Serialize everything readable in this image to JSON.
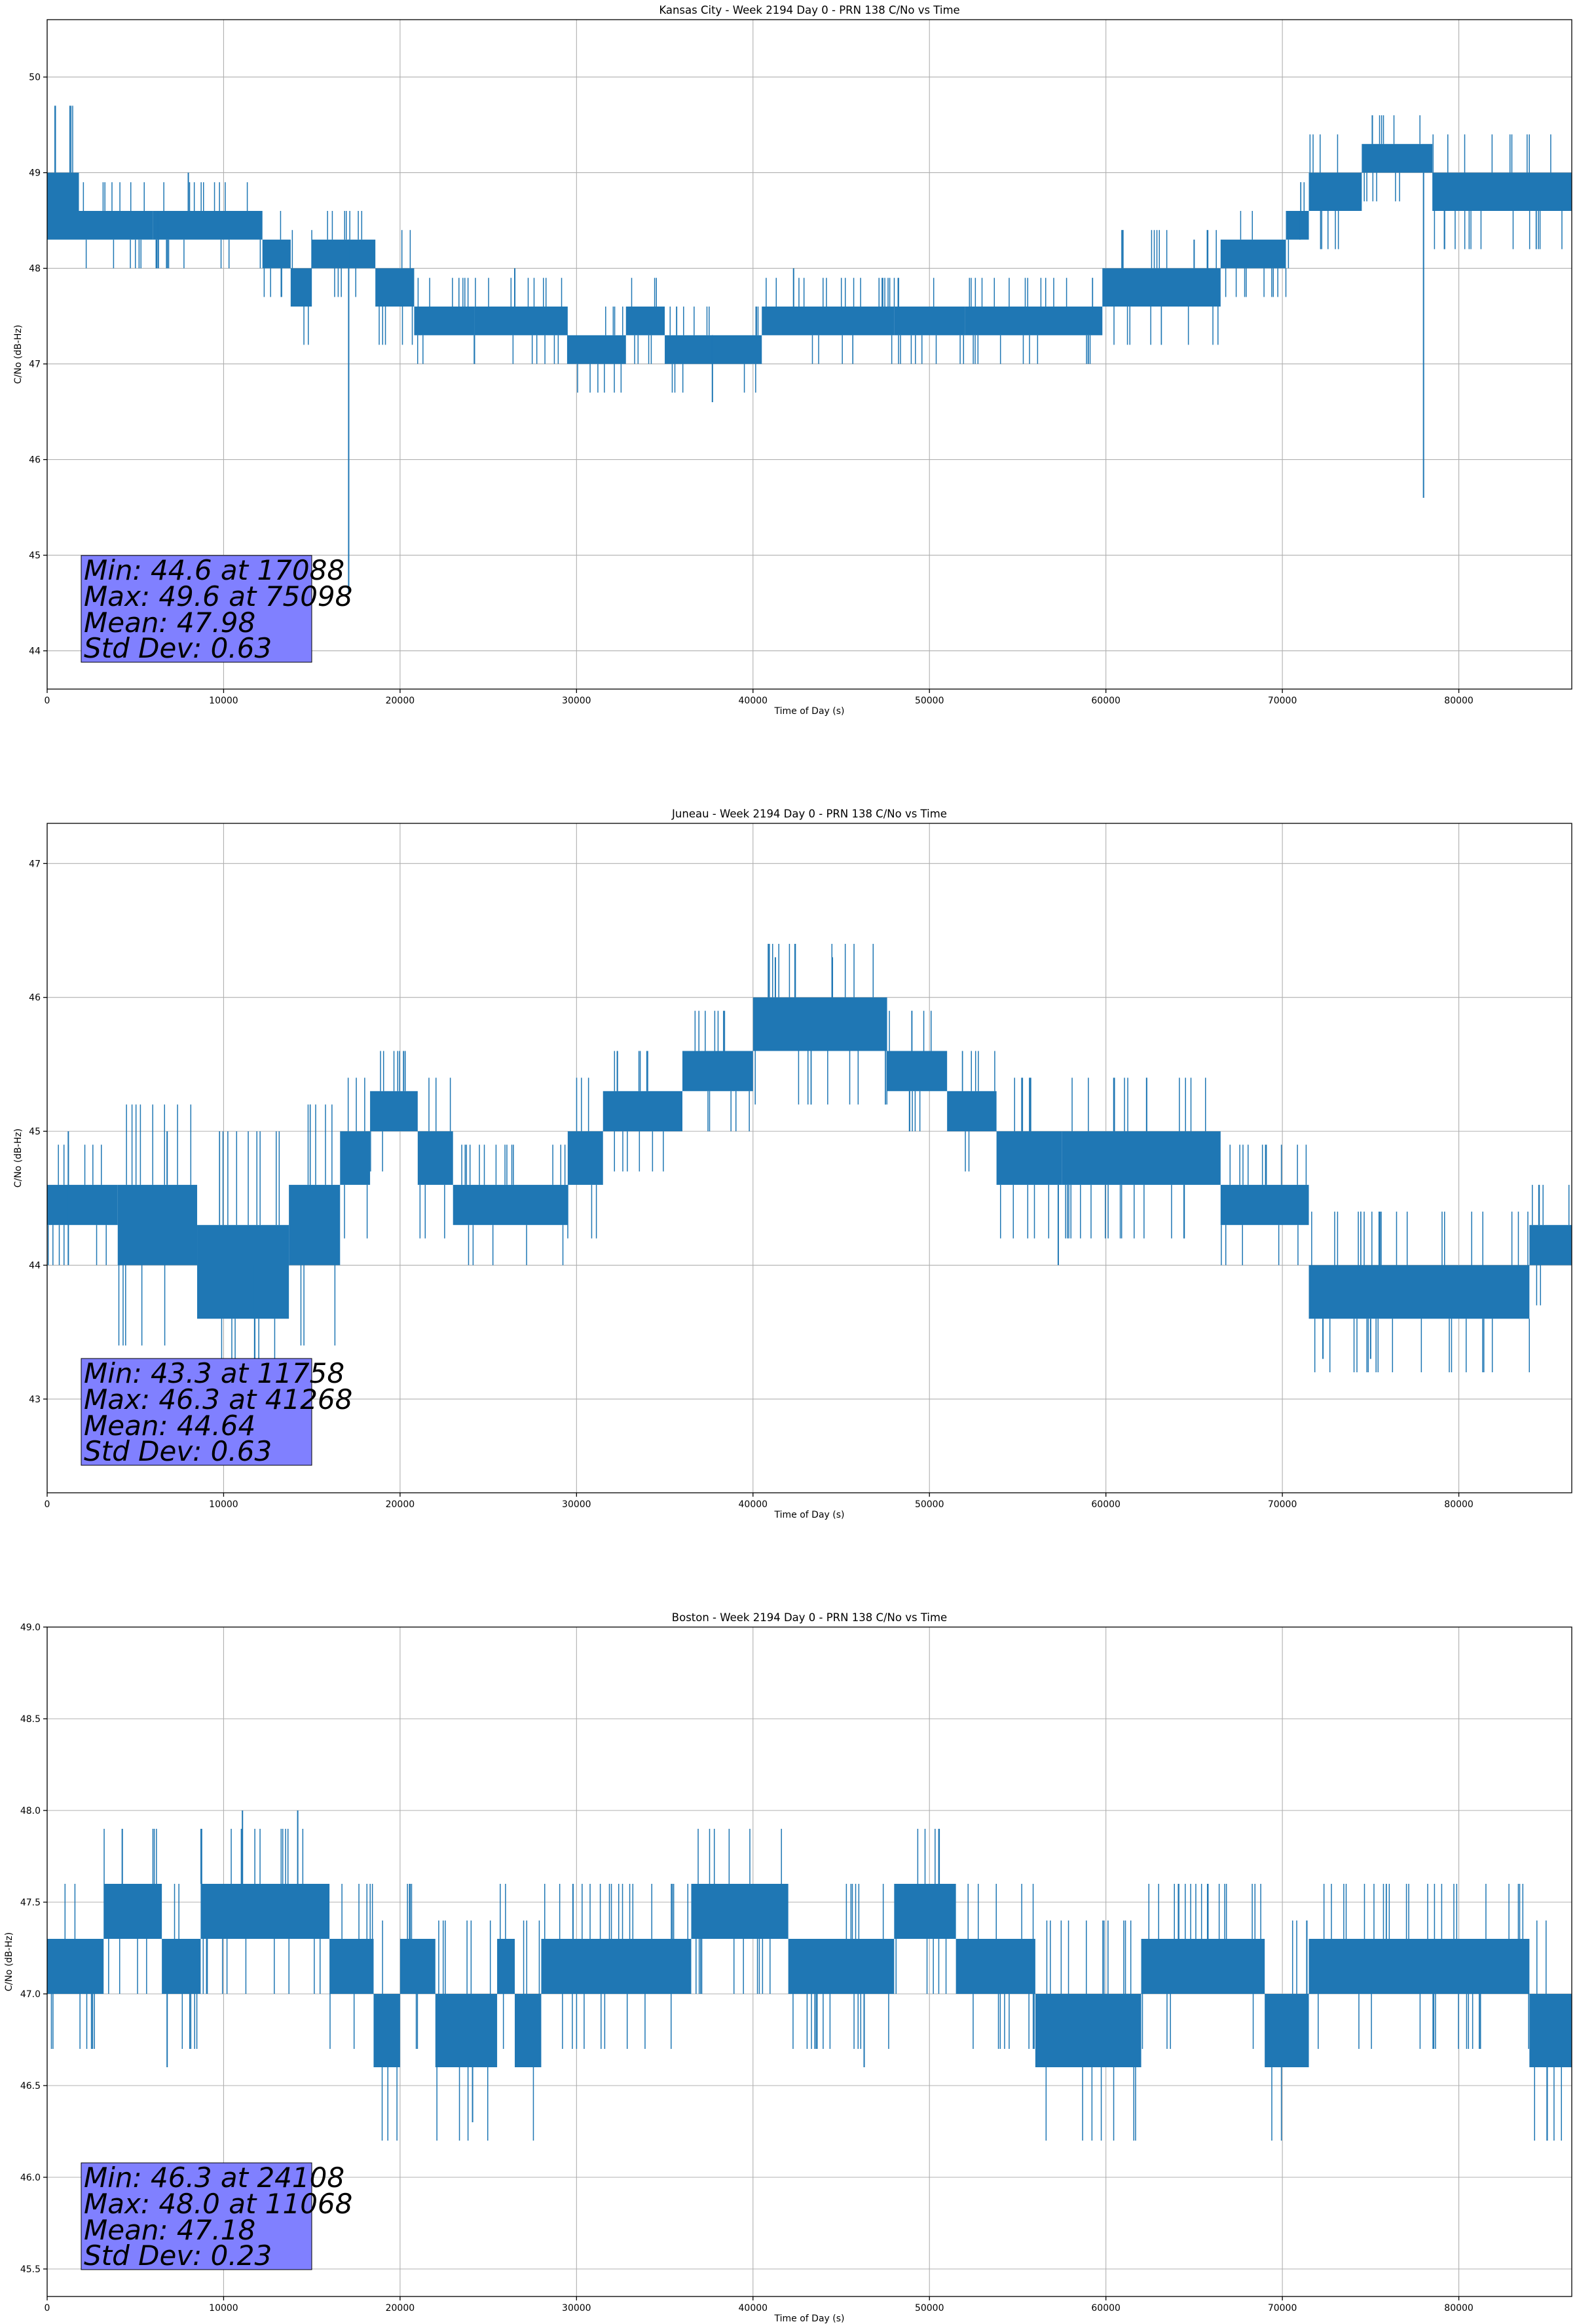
{
  "colors": {
    "series": "#1f77b4",
    "stats_box": "#8080ff",
    "grid": "#b0b0b0"
  },
  "chart_data": [
    {
      "type": "line",
      "title": "Kansas City - Week 2194 Day 0 - PRN 138 C/No vs Time",
      "xlabel": "Time of Day (s)",
      "ylabel": "C/No (dB-Hz)",
      "xlim": [
        0,
        86400
      ],
      "ylim": [
        43.6,
        50.6
      ],
      "xticks": [
        0,
        10000,
        20000,
        30000,
        40000,
        50000,
        60000,
        70000,
        80000
      ],
      "xtick_labels": [
        "0",
        "10000",
        "20000",
        "30000",
        "40000",
        "50000",
        "60000",
        "70000",
        "80000"
      ],
      "yticks": [
        44,
        45,
        46,
        47,
        48,
        49,
        50
      ],
      "ytick_labels": [
        "44",
        "45",
        "46",
        "47",
        "48",
        "49",
        "50"
      ],
      "grid": true,
      "stats_lines": [
        "Min: 44.6 at 17088",
        "Max: 49.6 at 75098",
        "Mean: 47.98",
        "Std Dev: 0.63"
      ],
      "series": [
        {
          "bands": [
            {
              "x": [
                0,
                1800
              ],
              "y": [
                48.3,
                49.0
              ]
            },
            {
              "x": [
                1800,
                6000
              ],
              "y": [
                48.3,
                48.6
              ]
            },
            {
              "x": [
                6000,
                12200
              ],
              "y": [
                48.3,
                48.6
              ]
            },
            {
              "x": [
                12200,
                13800
              ],
              "y": [
                48.0,
                48.3
              ]
            },
            {
              "x": [
                13800,
                15000
              ],
              "y": [
                47.6,
                48.0
              ]
            },
            {
              "x": [
                15000,
                18600
              ],
              "y": [
                48.0,
                48.3
              ]
            },
            {
              "x": [
                18600,
                20800
              ],
              "y": [
                47.6,
                48.0
              ]
            },
            {
              "x": [
                20800,
                24200
              ],
              "y": [
                47.3,
                47.6
              ]
            },
            {
              "x": [
                24200,
                29500
              ],
              "y": [
                47.3,
                47.6
              ]
            },
            {
              "x": [
                29500,
                32800
              ],
              "y": [
                47.0,
                47.3
              ]
            },
            {
              "x": [
                32800,
                35000
              ],
              "y": [
                47.3,
                47.6
              ]
            },
            {
              "x": [
                35000,
                40500
              ],
              "y": [
                47.0,
                47.3
              ]
            },
            {
              "x": [
                40500,
                48000
              ],
              "y": [
                47.3,
                47.6
              ]
            },
            {
              "x": [
                48000,
                52000
              ],
              "y": [
                47.3,
                47.6
              ]
            },
            {
              "x": [
                52000,
                59800
              ],
              "y": [
                47.3,
                47.6
              ]
            },
            {
              "x": [
                59800,
                66500
              ],
              "y": [
                47.6,
                48.0
              ]
            },
            {
              "x": [
                66500,
                70200
              ],
              "y": [
                48.0,
                48.3
              ]
            },
            {
              "x": [
                70200,
                71500
              ],
              "y": [
                48.3,
                48.6
              ]
            },
            {
              "x": [
                71500,
                74500
              ],
              "y": [
                48.6,
                49.0
              ]
            },
            {
              "x": [
                74500,
                78500
              ],
              "y": [
                49.0,
                49.3
              ]
            },
            {
              "x": [
                78500,
                86400
              ],
              "y": [
                48.6,
                49.0
              ]
            }
          ],
          "spikes": [
            {
              "x": 6300,
              "y": [
                48.0,
                48.6
              ]
            },
            {
              "x": 8000,
              "y": [
                48.6,
                49.0
              ]
            },
            {
              "x": 17088,
              "y": [
                44.6,
                48.3
              ]
            },
            {
              "x": 26500,
              "y": [
                47.6,
                48.0
              ]
            },
            {
              "x": 37700,
              "y": [
                46.6,
                47.3
              ]
            },
            {
              "x": 42300,
              "y": [
                47.6,
                48.0
              ]
            },
            {
              "x": 59000,
              "y": [
                47.0,
                47.3
              ]
            },
            {
              "x": 65000,
              "y": [
                48.0,
                48.3
              ]
            },
            {
              "x": 71000,
              "y": [
                48.3,
                48.6
              ]
            },
            {
              "x": 75098,
              "y": [
                49.3,
                49.6
              ]
            },
            {
              "x": 78000,
              "y": [
                45.6,
                49.0
              ]
            }
          ]
        }
      ]
    },
    {
      "type": "line",
      "title": "Juneau - Week 2194 Day 0 - PRN 138 C/No vs Time",
      "xlabel": "Time of Day (s)",
      "ylabel": "C/No (dB-Hz)",
      "xlim": [
        0,
        86400
      ],
      "ylim": [
        42.3,
        47.3
      ],
      "xticks": [
        0,
        10000,
        20000,
        30000,
        40000,
        50000,
        60000,
        70000,
        80000
      ],
      "xtick_labels": [
        "0",
        "10000",
        "20000",
        "30000",
        "40000",
        "50000",
        "60000",
        "70000",
        "80000"
      ],
      "yticks": [
        43,
        44,
        45,
        46,
        47
      ],
      "ytick_labels": [
        "43",
        "44",
        "45",
        "46",
        "47"
      ],
      "grid": true,
      "stats_lines": [
        "Min: 43.3 at 11758",
        "Max: 46.3 at 41268",
        "Mean: 44.64",
        "Std Dev: 0.63"
      ],
      "series": [
        {
          "bands": [
            {
              "x": [
                0,
                4000
              ],
              "y": [
                44.3,
                44.6
              ]
            },
            {
              "x": [
                4000,
                8500
              ],
              "y": [
                44.0,
                44.6
              ]
            },
            {
              "x": [
                8500,
                13700
              ],
              "y": [
                43.6,
                44.3
              ]
            },
            {
              "x": [
                13700,
                16600
              ],
              "y": [
                44.0,
                44.6
              ]
            },
            {
              "x": [
                16600,
                18300
              ],
              "y": [
                44.6,
                45.0
              ]
            },
            {
              "x": [
                18300,
                21000
              ],
              "y": [
                45.0,
                45.3
              ]
            },
            {
              "x": [
                21000,
                23000
              ],
              "y": [
                44.6,
                45.0
              ]
            },
            {
              "x": [
                23000,
                29500
              ],
              "y": [
                44.3,
                44.6
              ]
            },
            {
              "x": [
                29500,
                31500
              ],
              "y": [
                44.6,
                45.0
              ]
            },
            {
              "x": [
                31500,
                36000
              ],
              "y": [
                45.0,
                45.3
              ]
            },
            {
              "x": [
                36000,
                40000
              ],
              "y": [
                45.3,
                45.6
              ]
            },
            {
              "x": [
                40000,
                47600
              ],
              "y": [
                45.6,
                46.0
              ]
            },
            {
              "x": [
                47600,
                51000
              ],
              "y": [
                45.3,
                45.6
              ]
            },
            {
              "x": [
                51000,
                53800
              ],
              "y": [
                45.0,
                45.3
              ]
            },
            {
              "x": [
                53800,
                57500
              ],
              "y": [
                44.6,
                45.0
              ]
            },
            {
              "x": [
                57500,
                66500
              ],
              "y": [
                44.6,
                45.0
              ]
            },
            {
              "x": [
                66500,
                71500
              ],
              "y": [
                44.3,
                44.6
              ]
            },
            {
              "x": [
                71500,
                84000
              ],
              "y": [
                43.6,
                44.0
              ]
            },
            {
              "x": [
                84000,
                86400
              ],
              "y": [
                44.0,
                44.3
              ]
            }
          ],
          "spikes": [
            {
              "x": 1200,
              "y": [
                45.0,
                44.0
              ]
            },
            {
              "x": 6800,
              "y": [
                44.6,
                45.0
              ]
            },
            {
              "x": 11758,
              "y": [
                43.3,
                44.0
              ]
            },
            {
              "x": 20200,
              "y": [
                45.3,
                45.6
              ]
            },
            {
              "x": 41268,
              "y": [
                46.0,
                46.3
              ]
            },
            {
              "x": 44500,
              "y": [
                46.0,
                46.3
              ]
            },
            {
              "x": 57300,
              "y": [
                44.0,
                44.6
              ]
            },
            {
              "x": 72300,
              "y": [
                43.3,
                43.6
              ]
            },
            {
              "x": 75000,
              "y": [
                43.3,
                43.6
              ]
            }
          ]
        }
      ]
    },
    {
      "type": "line",
      "title": "Boston - Week 2194 Day 0 - PRN 138 C/No vs Time",
      "xlabel": "Time of Day (s)",
      "ylabel": "C/No (dB-Hz)",
      "xlim": [
        0,
        86400
      ],
      "ylim": [
        45.35,
        49.0
      ],
      "xticks": [
        0,
        10000,
        20000,
        30000,
        40000,
        50000,
        60000,
        70000,
        80000
      ],
      "xtick_labels": [
        "0",
        "10000",
        "20000",
        "30000",
        "40000",
        "50000",
        "60000",
        "70000",
        "80000"
      ],
      "yticks": [
        45.5,
        46.0,
        46.5,
        47.0,
        47.5,
        48.0,
        48.5,
        49.0
      ],
      "ytick_labels": [
        "45.5",
        "46.0",
        "46.5",
        "47.0",
        "47.5",
        "48.0",
        "48.5",
        "49.0"
      ],
      "grid": true,
      "stats_lines": [
        "Min: 46.3 at 24108",
        "Max: 48.0 at 11068",
        "Mean: 47.18",
        "Std Dev: 0.23"
      ],
      "series": [
        {
          "bands": [
            {
              "x": [
                0,
                3200
              ],
              "y": [
                47.0,
                47.3
              ]
            },
            {
              "x": [
                3200,
                6500
              ],
              "y": [
                47.3,
                47.6
              ]
            },
            {
              "x": [
                6500,
                8700
              ],
              "y": [
                47.0,
                47.3
              ]
            },
            {
              "x": [
                8700,
                16000
              ],
              "y": [
                47.3,
                47.6
              ]
            },
            {
              "x": [
                16000,
                18500
              ],
              "y": [
                47.0,
                47.3
              ]
            },
            {
              "x": [
                18500,
                20000
              ],
              "y": [
                46.6,
                47.0
              ]
            },
            {
              "x": [
                20000,
                22000
              ],
              "y": [
                47.0,
                47.3
              ]
            },
            {
              "x": [
                22000,
                25500
              ],
              "y": [
                46.6,
                47.0
              ]
            },
            {
              "x": [
                25500,
                26500
              ],
              "y": [
                47.0,
                47.3
              ]
            },
            {
              "x": [
                26500,
                28000
              ],
              "y": [
                46.6,
                47.0
              ]
            },
            {
              "x": [
                28000,
                36500
              ],
              "y": [
                47.0,
                47.3
              ]
            },
            {
              "x": [
                36500,
                42000
              ],
              "y": [
                47.3,
                47.6
              ]
            },
            {
              "x": [
                42000,
                48000
              ],
              "y": [
                47.0,
                47.3
              ]
            },
            {
              "x": [
                48000,
                51500
              ],
              "y": [
                47.3,
                47.6
              ]
            },
            {
              "x": [
                51500,
                56000
              ],
              "y": [
                47.0,
                47.3
              ]
            },
            {
              "x": [
                56000,
                62000
              ],
              "y": [
                46.6,
                47.0
              ]
            },
            {
              "x": [
                62000,
                69000
              ],
              "y": [
                47.0,
                47.3
              ]
            },
            {
              "x": [
                69000,
                71500
              ],
              "y": [
                46.6,
                47.0
              ]
            },
            {
              "x": [
                71500,
                84000
              ],
              "y": [
                47.0,
                47.3
              ]
            },
            {
              "x": [
                84000,
                86400
              ],
              "y": [
                46.6,
                47.0
              ]
            }
          ],
          "spikes": [
            {
              "x": 6800,
              "y": [
                46.6,
                47.0
              ]
            },
            {
              "x": 11068,
              "y": [
                47.6,
                48.0
              ]
            },
            {
              "x": 14200,
              "y": [
                47.6,
                48.0
              ]
            },
            {
              "x": 24108,
              "y": [
                46.3,
                46.6
              ]
            },
            {
              "x": 29800,
              "y": [
                47.3,
                47.6
              ]
            },
            {
              "x": 46300,
              "y": [
                46.6,
                47.0
              ]
            }
          ]
        }
      ]
    }
  ]
}
